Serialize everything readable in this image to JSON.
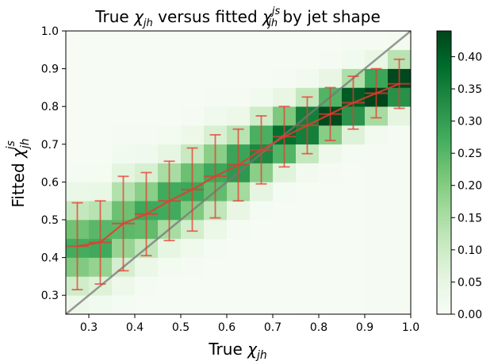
{
  "chart_data": {
    "type": "heatmap",
    "title": "True χjh versus fitted χjhjs by jet shape",
    "title_parts": {
      "a": "True ",
      "chi": "χ",
      "sub1": "jh",
      "b": " versus fitted ",
      "chi2": "χ",
      "sup2": "js",
      "sub2": "jh",
      "c": " by jet shape"
    },
    "xlabel": "True χjh",
    "xlabel_parts": {
      "a": "True ",
      "chi": "χ",
      "sub": "jh"
    },
    "ylabel": "Fitted χjhjs",
    "ylabel_parts": {
      "a": "Fitted ",
      "chi": "χ",
      "sub": "jh",
      "sup": "js"
    },
    "xlim": [
      0.25,
      1.0
    ],
    "ylim": [
      0.25,
      1.0
    ],
    "xticks": [
      "0.3",
      "0.4",
      "0.5",
      "0.6",
      "0.7",
      "0.8",
      "0.9",
      "1.0"
    ],
    "yticks": [
      "0.3",
      "0.4",
      "0.5",
      "0.6",
      "0.7",
      "0.8",
      "0.9",
      "1.0"
    ],
    "colorbar": {
      "range": [
        0.0,
        0.44
      ],
      "ticks": [
        "0.00",
        "0.05",
        "0.10",
        "0.15",
        "0.20",
        "0.25",
        "0.30",
        "0.35",
        "0.40"
      ],
      "colormap": "Greens",
      "low_color": "#f7fcf5",
      "high_color": "#00441b"
    },
    "bins": {
      "n": 15,
      "min": 0.25,
      "max": 1.0
    },
    "density_model": {
      "spread": [
        0.055,
        0.045,
        0.04
      ],
      "peak_note": "column-normalized"
    },
    "profile": {
      "x": [
        0.275,
        0.325,
        0.375,
        0.425,
        0.475,
        0.525,
        0.575,
        0.625,
        0.675,
        0.725,
        0.775,
        0.825,
        0.875,
        0.925,
        0.975
      ],
      "y": [
        0.43,
        0.44,
        0.49,
        0.515,
        0.55,
        0.58,
        0.615,
        0.645,
        0.685,
        0.72,
        0.75,
        0.78,
        0.81,
        0.835,
        0.86
      ],
      "err": [
        0.115,
        0.11,
        0.125,
        0.11,
        0.105,
        0.11,
        0.11,
        0.095,
        0.09,
        0.08,
        0.075,
        0.07,
        0.07,
        0.065,
        0.065
      ],
      "color": "#e8392f"
    },
    "diagonal": {
      "from": [
        0.25,
        0.25
      ],
      "to": [
        1.0,
        1.0
      ],
      "color": "#777777"
    }
  }
}
